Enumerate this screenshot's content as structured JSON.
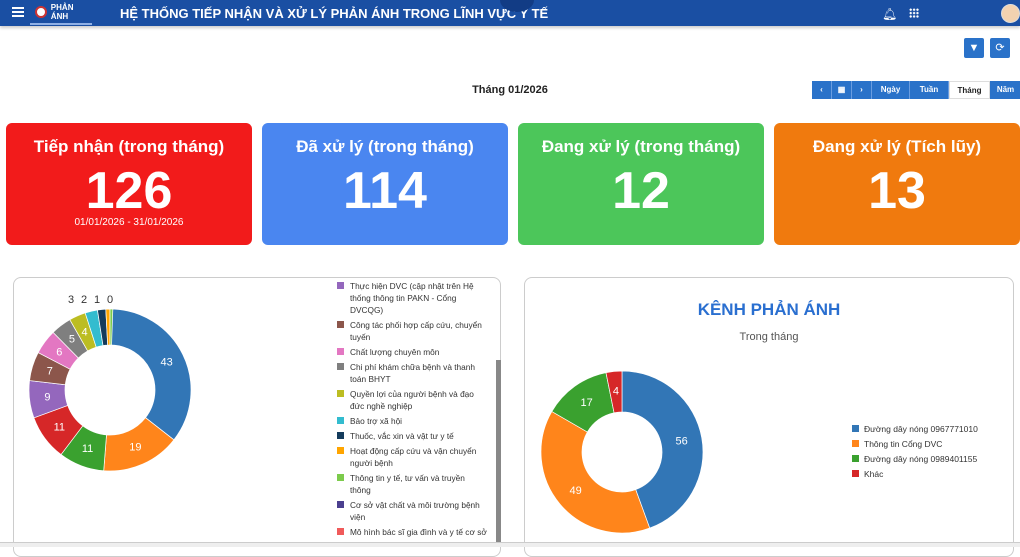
{
  "header": {
    "logo_text": "PHẢN ÁNH",
    "title": "HỆ THỐNG TIẾP NHẬN VÀ XỬ LÝ PHẢN ÁNH TRONG LĨNH VỰC Y TẾ",
    "icons": [
      "menu-icon",
      "bell-icon",
      "apps-grid-icon",
      "avatar"
    ]
  },
  "toolbar": {
    "icons": [
      "filter-icon",
      "refresh-icon"
    ]
  },
  "period": {
    "label": "Tháng 01/2026",
    "buttons": [
      "Ngày",
      "Tuần",
      "Tháng",
      "Năm"
    ],
    "active": "Tháng"
  },
  "cards": [
    {
      "label": "Tiếp nhận (trong tháng)",
      "value": "126",
      "sub": "01/01/2026 - 31/01/2026",
      "color": "#f21b1b"
    },
    {
      "label": "Đã xử lý (trong tháng)",
      "value": "114",
      "sub": "",
      "color": "#4a86f0"
    },
    {
      "label": "Đang xử lý (trong tháng)",
      "value": "12",
      "sub": "",
      "color": "#4cc65a"
    },
    {
      "label": "Đang xử lý (Tích lũy)",
      "value": "13",
      "sub": "",
      "color": "#f07a0e"
    }
  ],
  "chart_data": [
    {
      "type": "pie",
      "donut": true,
      "values": [
        43,
        19,
        11,
        11,
        9,
        7,
        6,
        5,
        4,
        3,
        2,
        1,
        0
      ],
      "colors": [
        "#3276b6",
        "#ff851b",
        "#3aa12f",
        "#d62728",
        "#9467bd",
        "#8c564b",
        "#e377c2",
        "#7f7f7f",
        "#bcbd22",
        "#33bccf",
        "#143b5c",
        "#ffa500",
        "#7ccb4c"
      ],
      "legend": [
        {
          "label": "Thực hiện DVC (cập nhật trên Hệ thống thông tin PAKN - Cổng DVCQG)",
          "color": "#9467bd"
        },
        {
          "label": "Công tác phối hợp cấp cứu, chuyển tuyến",
          "color": "#8c564b"
        },
        {
          "label": "Chất lượng chuyên môn",
          "color": "#e377c2"
        },
        {
          "label": "Chi phí khám chữa bệnh và thanh toán BHYT",
          "color": "#7f7f7f"
        },
        {
          "label": "Quyền lợi của người bệnh và đạo đức nghề nghiệp",
          "color": "#bcbd22"
        },
        {
          "label": "Bảo trợ xã hội",
          "color": "#33bccf"
        },
        {
          "label": "Thuốc, vắc xin và vật tư y tế",
          "color": "#143b5c"
        },
        {
          "label": "Hoạt động cấp cứu và vận chuyển người bệnh",
          "color": "#ffa500"
        },
        {
          "label": "Thông tin y tế, tư vấn và truyền thông",
          "color": "#7ccb4c"
        },
        {
          "label": "Cơ sở vật chất và môi trường bệnh viện",
          "color": "#4b3f8f"
        },
        {
          "label": "Mô hình bác sĩ gia đình và y tế cơ sở",
          "color": "#f05a5a"
        }
      ]
    },
    {
      "type": "pie",
      "donut": true,
      "title": "KÊNH PHẢN ÁNH",
      "subtitle": "Trong tháng",
      "categories": [
        "Đường dây nóng 0967771010",
        "Thông tin Cổng DVC",
        "Đường dây nóng 0989401155",
        "Khác"
      ],
      "values": [
        56,
        49,
        17,
        4
      ],
      "colors": [
        "#3276b6",
        "#ff851b",
        "#3aa12f",
        "#d62728"
      ],
      "legend_position": "right"
    }
  ]
}
